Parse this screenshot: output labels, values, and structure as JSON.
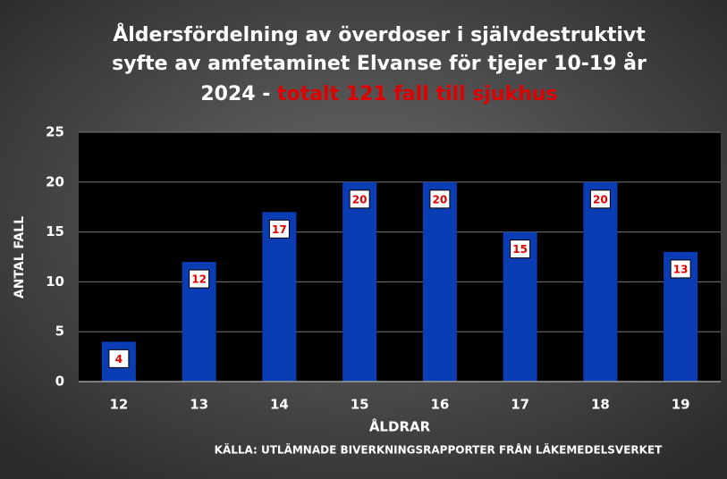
{
  "chart_data": {
    "type": "bar",
    "title": [
      "Åldersfördelning av överdoser i självdestruktivt",
      "syfte av amfetaminet Elvanse för tjejer 10-19 år",
      "2024 -"
    ],
    "title_highlight": "totalt 121 fall till sjukhus",
    "categories": [
      "12",
      "13",
      "14",
      "15",
      "16",
      "17",
      "18",
      "19"
    ],
    "values": [
      4,
      12,
      17,
      20,
      20,
      15,
      20,
      13
    ],
    "color": "#0a3cb4",
    "highlight_color": "#e00000",
    "ylim": [
      0,
      25
    ],
    "yticks": [
      0,
      5,
      10,
      15,
      20,
      25
    ],
    "grid": true,
    "y_label": "ANTAL FALL",
    "x_label": "ÅLDRAR",
    "source": "KÄLLA: UTLÄMNADE BIVERKNINGSRAPPORTER FRÅN LÄKEMEDELSVERKET"
  }
}
